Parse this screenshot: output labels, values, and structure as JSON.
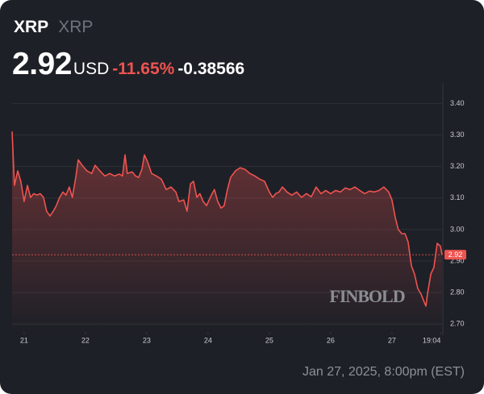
{
  "header": {
    "symbol": "XRP",
    "name": "XRP",
    "price": "2.92",
    "currency": "USD",
    "change_percent": "-11.65%",
    "change": "-0.38566"
  },
  "chart_data": {
    "type": "line",
    "watermark": "FINBOLD",
    "x": [
      -4.7,
      -3.8,
      -2.5,
      -1.3,
      0,
      1.3,
      2.5,
      3.8,
      5.1,
      6.3,
      7.6,
      8.8,
      10.1,
      11.4,
      12.6,
      13.9,
      15.2,
      16.4,
      17.7,
      18.9,
      20.2,
      21.2,
      22.7,
      24.6,
      26.5,
      27.8,
      29.7,
      31.6,
      33.5,
      35.4,
      37.3,
      38.5,
      39.5,
      40.4,
      42.3,
      43.6,
      44.8,
      46.1,
      47.1,
      48.3,
      49.9,
      51.8,
      53.7,
      55.6,
      57.5,
      59.4,
      60.6,
      62.5,
      63.8,
      65.1,
      66.3,
      67.6,
      68.8,
      70.1,
      71.4,
      73.3,
      74.5,
      75.8,
      77.1,
      78.3,
      79.6,
      80.8,
      82.7,
      84.6,
      86.5,
      88.4,
      90.3,
      92.2,
      94.1,
      96.0,
      97.3,
      98.5,
      99.8,
      101.1,
      102.9,
      104.8,
      106.7,
      108.6,
      110.5,
      112.4,
      114.3,
      116.2,
      118.1,
      120.0,
      121.9,
      123.8,
      125.7,
      127.6,
      129.5,
      131.4,
      133.3,
      135.2,
      137.1,
      138.9,
      140.8,
      142.7,
      144.0,
      145.3,
      146.5,
      147.8,
      149.1,
      150.3,
      151.6,
      152.8,
      154.1,
      155.4,
      156.6,
      157.3,
      157.9,
      159.2,
      160.4,
      161.7,
      162.9,
      163.6
    ],
    "series": [
      {
        "name": "XRP",
        "color": "#ef5350",
        "values": [
          3.311,
          3.14,
          3.186,
          3.153,
          3.089,
          3.14,
          3.102,
          3.114,
          3.109,
          3.114,
          3.102,
          3.058,
          3.043,
          3.058,
          3.076,
          3.102,
          3.119,
          3.109,
          3.135,
          3.102,
          3.165,
          3.221,
          3.204,
          3.186,
          3.178,
          3.204,
          3.186,
          3.17,
          3.178,
          3.17,
          3.176,
          3.17,
          3.237,
          3.178,
          3.183,
          3.17,
          3.165,
          3.191,
          3.237,
          3.216,
          3.178,
          3.17,
          3.16,
          3.127,
          3.135,
          3.119,
          3.089,
          3.094,
          3.058,
          3.145,
          3.153,
          3.102,
          3.114,
          3.089,
          3.076,
          3.109,
          3.127,
          3.089,
          3.068,
          3.076,
          3.127,
          3.165,
          3.186,
          3.196,
          3.191,
          3.178,
          3.17,
          3.16,
          3.153,
          3.119,
          3.102,
          3.114,
          3.119,
          3.135,
          3.119,
          3.109,
          3.119,
          3.102,
          3.114,
          3.104,
          3.135,
          3.114,
          3.124,
          3.114,
          3.124,
          3.119,
          3.132,
          3.127,
          3.135,
          3.124,
          3.114,
          3.122,
          3.119,
          3.124,
          3.135,
          3.119,
          3.094,
          3.038,
          3.0,
          2.987,
          2.987,
          2.961,
          2.885,
          2.859,
          2.813,
          2.795,
          2.77,
          2.757,
          2.795,
          2.859,
          2.88,
          2.956,
          2.948,
          2.92
        ]
      }
    ],
    "current_price": 2.92,
    "xlim": [
      -4.7,
      163.6
    ],
    "xticks": [
      {
        "value": 0,
        "label": "21"
      },
      {
        "value": 24,
        "label": "22"
      },
      {
        "value": 48,
        "label": "23"
      },
      {
        "value": 72,
        "label": "24"
      },
      {
        "value": 96,
        "label": "25"
      },
      {
        "value": 120,
        "label": "26"
      },
      {
        "value": 144,
        "label": "27"
      },
      {
        "value": 163.1,
        "label": "19:04"
      }
    ],
    "ylim": [
      2.675,
      3.465
    ],
    "yticks": [
      {
        "value": 2.7,
        "label": "2.70"
      },
      {
        "value": 2.8,
        "label": "2.80"
      },
      {
        "value": 2.9,
        "label": "2.90"
      },
      {
        "value": 3.0,
        "label": "3.00"
      },
      {
        "value": 3.1,
        "label": "3.10"
      },
      {
        "value": 3.2,
        "label": "3.20"
      },
      {
        "value": 3.3,
        "label": "3.30"
      },
      {
        "value": 3.4,
        "label": "3.40"
      }
    ],
    "grid": true
  },
  "footer": {
    "timestamp": "Jan 27, 2025, 8:00pm (EST)"
  }
}
